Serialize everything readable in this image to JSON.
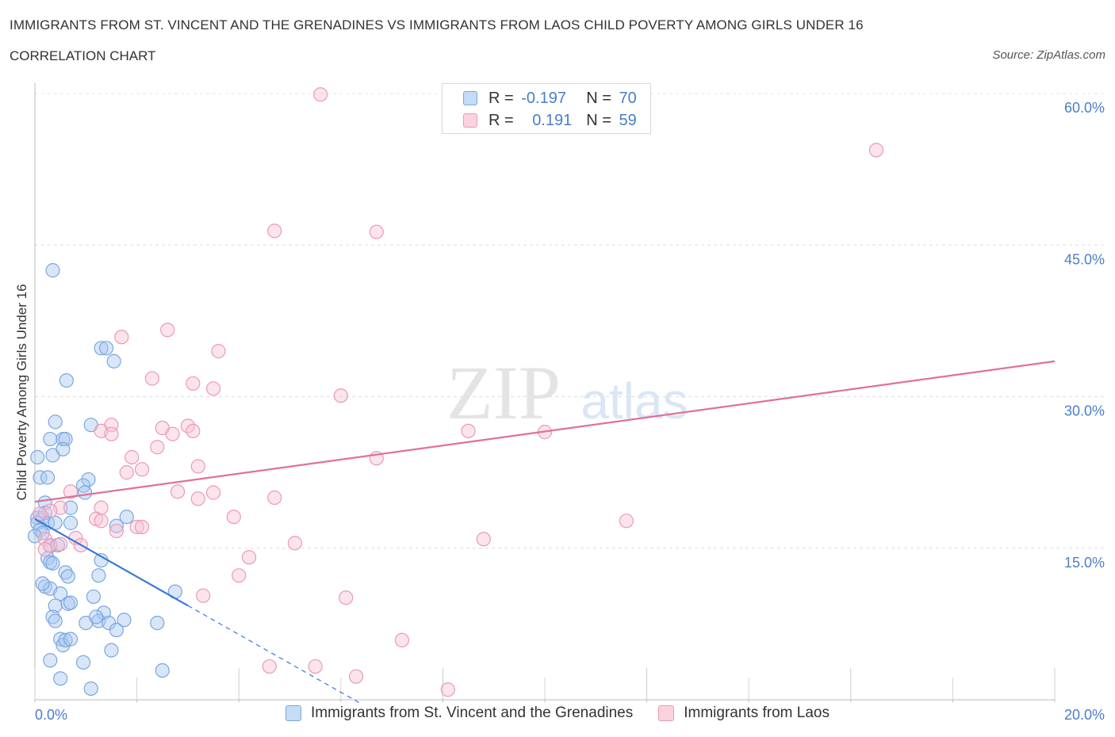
{
  "header": {
    "title": "IMMIGRANTS FROM ST. VINCENT AND THE GRENADINES VS IMMIGRANTS FROM LAOS CHILD POVERTY AMONG GIRLS UNDER 16",
    "subtitle": "CORRELATION CHART",
    "source": "Source: ZipAtlas.com"
  },
  "watermark": {
    "zip": "ZIP",
    "atlas": "atlas"
  },
  "stats_legend": {
    "rows": [
      {
        "r_label": "R =",
        "r_value": "-0.197",
        "n_label": "N =",
        "n_value": "70",
        "color": "#a9c8f0",
        "border": "#7aa7e0"
      },
      {
        "r_label": "R =",
        "r_value": "0.191",
        "n_label": "N =",
        "n_value": "59",
        "color": "#f7c4d4",
        "border": "#ea9ab5"
      }
    ]
  },
  "bottom_legend": [
    {
      "label": "Immigrants from St. Vincent and the Grenadines",
      "color": "#c5dbf6",
      "border": "#7aa7e0"
    },
    {
      "label": "Immigrants from Laos",
      "color": "#fad3df",
      "border": "#ea9ab5"
    }
  ],
  "chart_data": {
    "type": "scatter",
    "ylabel": "Child Poverty Among Girls Under 16",
    "xlim": [
      0,
      20
    ],
    "ylim": [
      0,
      60
    ],
    "x_tick_labels": [
      "0.0%",
      "20.0%"
    ],
    "y_ticks": [
      15,
      30,
      45,
      60
    ],
    "y_tick_labels": [
      "15.0%",
      "30.0%",
      "45.0%",
      "60.0%"
    ],
    "grid": true,
    "series": [
      {
        "name": "Immigrants from St. Vincent and the Grenadines",
        "color": "#7aa7e0",
        "fill": "#a9c8f0",
        "trend_color": "#3a78d4",
        "trend": {
          "x_solid": [
            0.0,
            3.0
          ],
          "x_dashed": [
            3.0,
            6.4
          ],
          "y_at_x0": 17.9,
          "slope": -2.86
        },
        "points": [
          [
            0.35,
            42.5
          ],
          [
            0.62,
            31.6
          ],
          [
            1.3,
            34.8
          ],
          [
            1.4,
            34.8
          ],
          [
            1.55,
            33.5
          ],
          [
            0.4,
            27.5
          ],
          [
            1.1,
            27.2
          ],
          [
            0.3,
            25.8
          ],
          [
            0.55,
            25.8
          ],
          [
            0.6,
            25.8
          ],
          [
            0.35,
            24.2
          ],
          [
            0.55,
            24.8
          ],
          [
            0.05,
            24.0
          ],
          [
            0.1,
            22.0
          ],
          [
            0.25,
            22.0
          ],
          [
            1.05,
            21.8
          ],
          [
            0.95,
            21.2
          ],
          [
            0.98,
            20.5
          ],
          [
            0.2,
            19.5
          ],
          [
            0.7,
            19.0
          ],
          [
            0.05,
            18.0
          ],
          [
            0.15,
            18.0
          ],
          [
            0.2,
            18.5
          ],
          [
            0.25,
            17.5
          ],
          [
            0.05,
            17.5
          ],
          [
            0.1,
            16.8
          ],
          [
            0.15,
            16.5
          ],
          [
            0.4,
            17.5
          ],
          [
            0.7,
            17.5
          ],
          [
            1.6,
            17.2
          ],
          [
            1.8,
            18.1
          ],
          [
            0.0,
            16.2
          ],
          [
            0.3,
            15.2
          ],
          [
            0.45,
            15.3
          ],
          [
            0.25,
            14.0
          ],
          [
            0.3,
            13.6
          ],
          [
            0.35,
            13.5
          ],
          [
            1.3,
            13.8
          ],
          [
            0.6,
            12.6
          ],
          [
            0.65,
            12.2
          ],
          [
            1.25,
            12.3
          ],
          [
            0.2,
            11.2
          ],
          [
            0.3,
            11.0
          ],
          [
            0.5,
            10.5
          ],
          [
            1.15,
            10.2
          ],
          [
            2.75,
            10.7
          ],
          [
            0.4,
            9.3
          ],
          [
            0.65,
            9.5
          ],
          [
            0.7,
            9.6
          ],
          [
            1.35,
            8.6
          ],
          [
            0.35,
            8.2
          ],
          [
            0.4,
            7.8
          ],
          [
            1.25,
            7.8
          ],
          [
            1.45,
            7.6
          ],
          [
            1.75,
            7.9
          ],
          [
            2.4,
            7.6
          ],
          [
            1.0,
            7.6
          ],
          [
            0.5,
            6.0
          ],
          [
            0.55,
            5.4
          ],
          [
            0.6,
            5.9
          ],
          [
            1.6,
            6.9
          ],
          [
            1.5,
            4.9
          ],
          [
            0.3,
            3.9
          ],
          [
            0.95,
            3.7
          ],
          [
            2.5,
            2.9
          ],
          [
            0.5,
            2.1
          ],
          [
            1.1,
            1.1
          ],
          [
            0.7,
            6.0
          ],
          [
            1.2,
            8.2
          ],
          [
            0.15,
            11.5
          ]
        ]
      },
      {
        "name": "Immigrants from Laos",
        "color": "#ea9ab5",
        "fill": "#f7c4d4",
        "trend_color": "#e0709a",
        "trend": {
          "x_solid": [
            0.0,
            20.0
          ],
          "y_at_x0": 19.6,
          "slope": 0.695
        },
        "points": [
          [
            5.6,
            59.9
          ],
          [
            16.5,
            54.4
          ],
          [
            4.7,
            46.4
          ],
          [
            6.7,
            46.3
          ],
          [
            2.6,
            36.6
          ],
          [
            1.7,
            35.9
          ],
          [
            3.6,
            34.5
          ],
          [
            2.3,
            31.8
          ],
          [
            3.1,
            31.3
          ],
          [
            3.5,
            30.8
          ],
          [
            6.0,
            30.1
          ],
          [
            1.5,
            27.2
          ],
          [
            3.0,
            27.1
          ],
          [
            1.3,
            26.6
          ],
          [
            1.5,
            26.3
          ],
          [
            2.5,
            26.9
          ],
          [
            3.1,
            26.6
          ],
          [
            2.7,
            26.3
          ],
          [
            8.5,
            26.6
          ],
          [
            10.0,
            26.5
          ],
          [
            2.4,
            25.0
          ],
          [
            1.9,
            24.0
          ],
          [
            6.7,
            23.9
          ],
          [
            3.2,
            23.1
          ],
          [
            2.1,
            22.8
          ],
          [
            1.8,
            22.5
          ],
          [
            0.7,
            20.6
          ],
          [
            2.8,
            20.6
          ],
          [
            3.5,
            20.5
          ],
          [
            4.7,
            20.0
          ],
          [
            3.2,
            19.9
          ],
          [
            0.5,
            19.0
          ],
          [
            1.3,
            19.0
          ],
          [
            0.3,
            18.7
          ],
          [
            0.1,
            18.4
          ],
          [
            1.2,
            17.9
          ],
          [
            1.3,
            17.7
          ],
          [
            3.9,
            18.1
          ],
          [
            11.6,
            17.7
          ],
          [
            2.0,
            17.1
          ],
          [
            2.1,
            17.1
          ],
          [
            1.6,
            16.7
          ],
          [
            0.8,
            16.0
          ],
          [
            0.2,
            15.9
          ],
          [
            0.3,
            15.3
          ],
          [
            0.5,
            15.4
          ],
          [
            0.9,
            15.3
          ],
          [
            5.1,
            15.5
          ],
          [
            8.8,
            15.9
          ],
          [
            4.2,
            14.1
          ],
          [
            0.2,
            14.9
          ],
          [
            4.0,
            12.3
          ],
          [
            3.3,
            10.3
          ],
          [
            6.1,
            10.1
          ],
          [
            7.2,
            5.9
          ],
          [
            4.6,
            3.3
          ],
          [
            5.5,
            3.3
          ],
          [
            6.3,
            2.3
          ],
          [
            8.1,
            1.0
          ]
        ]
      }
    ]
  }
}
